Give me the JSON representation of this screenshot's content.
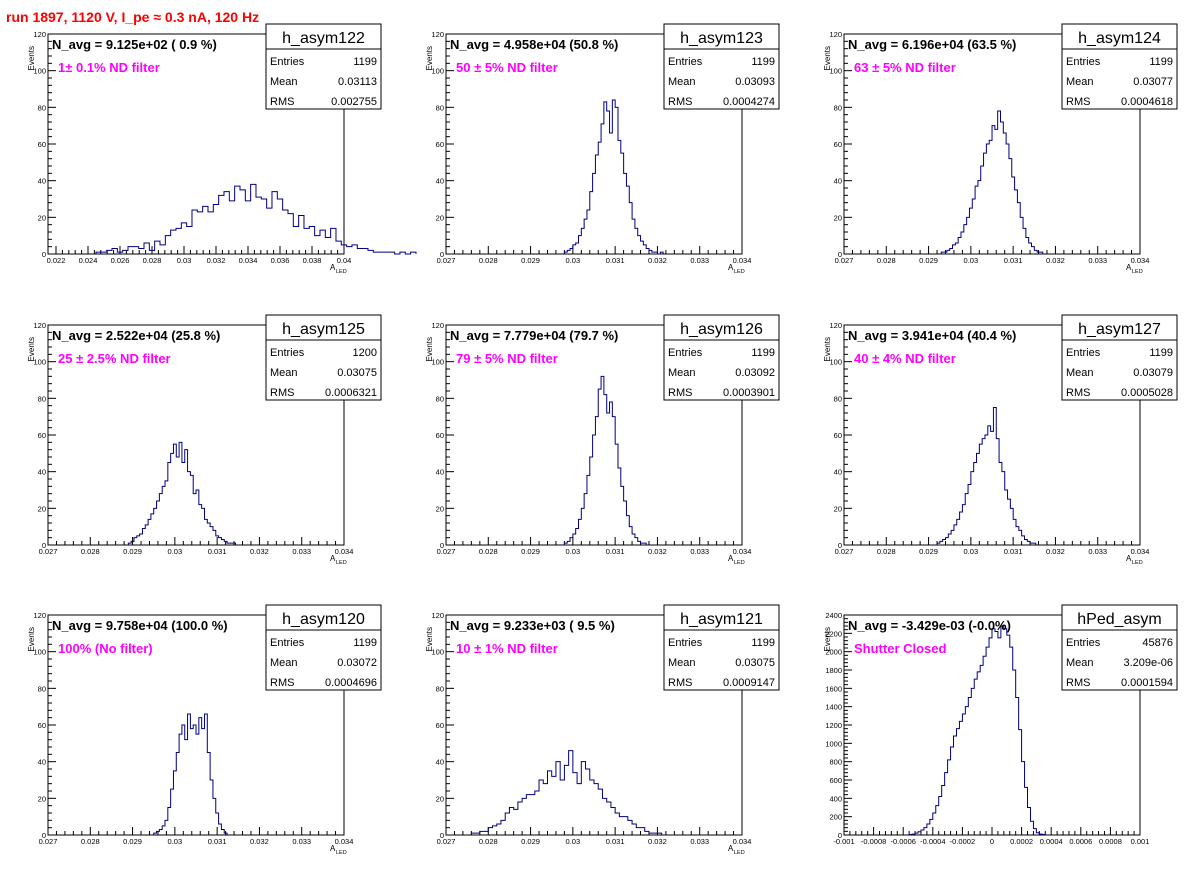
{
  "title": "run 1897,  1120 V, I_pe ≈ 0.3 nA, 120 Hz",
  "colors": {
    "title": "#ff0000",
    "note": "#ff00ff",
    "line": "#000080"
  },
  "chart_data": [
    {
      "type": "bar",
      "name": "h_asym122",
      "navg": "N_avg = 9.125e+02 ( 0.9 %)",
      "note": "1± 0.1% ND filter",
      "stats": {
        "entries": "1199",
        "mean": "0.03113",
        "rms": "0.002755"
      },
      "xlim": [
        0.0215,
        0.04
      ],
      "ylim": [
        0,
        120
      ],
      "xticks": [
        0.022,
        0.024,
        0.026,
        0.028,
        0.03,
        0.032,
        0.034,
        0.036,
        0.038,
        0.04
      ],
      "xtick_labels": [
        "0.022",
        "0.024",
        "0.026",
        "0.028",
        "0.03",
        "0.032",
        "0.034",
        "0.036",
        "0.038",
        "0.04"
      ],
      "yticks": [
        0,
        20,
        40,
        60,
        80,
        100,
        120
      ],
      "ytick_labels": [
        "0",
        "20",
        "40",
        "60",
        "80",
        "100",
        "120"
      ],
      "ylabel": "Events",
      "xlabel": "A",
      "xlabel_sub": "LED",
      "bins": {
        "start": 0.0245,
        "width": 0.0003333,
        "values": [
          1,
          1,
          2,
          3,
          1,
          2,
          4,
          4,
          3,
          6,
          2,
          7,
          5,
          10,
          13,
          14,
          17,
          15,
          24,
          23,
          26,
          23,
          27,
          32,
          34,
          29,
          37,
          35,
          29,
          38,
          31,
          30,
          25,
          34,
          30,
          24,
          22,
          15,
          21,
          14,
          15,
          10,
          13,
          9,
          14,
          7,
          5,
          4,
          5,
          3,
          3,
          2,
          1,
          1,
          1,
          1,
          0,
          1,
          0,
          1
        ]
      }
    },
    {
      "type": "bar",
      "name": "h_asym123",
      "navg": "N_avg = 4.958e+04 (50.8 %)",
      "note": "50 ± 5% ND filter",
      "stats": {
        "entries": "1199",
        "mean": "0.03093",
        "rms": "0.0004274"
      },
      "xlim": [
        0.027,
        0.034
      ],
      "ylim": [
        0,
        120
      ],
      "xticks": [
        0.027,
        0.028,
        0.029,
        0.03,
        0.031,
        0.032,
        0.033,
        0.034
      ],
      "xtick_labels": [
        "0.027",
        "0.028",
        "0.029",
        "0.03",
        "0.031",
        "0.032",
        "0.033",
        "0.034"
      ],
      "yticks": [
        0,
        20,
        40,
        60,
        80,
        100,
        120
      ],
      "ytick_labels": [
        "0",
        "20",
        "40",
        "60",
        "80",
        "100",
        "120"
      ],
      "ylabel": "Events",
      "xlabel": "A",
      "xlabel_sub": "LED",
      "bins": {
        "start": 0.0298,
        "width": 6.67e-05,
        "values": [
          1,
          2,
          3,
          5,
          6,
          10,
          14,
          19,
          24,
          34,
          44,
          54,
          61,
          71,
          83,
          78,
          66,
          84,
          80,
          62,
          55,
          44,
          37,
          28,
          19,
          14,
          10,
          7,
          5,
          3,
          2,
          1,
          1,
          0,
          1
        ]
      }
    },
    {
      "type": "bar",
      "name": "h_asym124",
      "navg": "N_avg = 6.196e+04 (63.5 %)",
      "note": "63 ± 5% ND filter",
      "stats": {
        "entries": "1199",
        "mean": "0.03077",
        "rms": "0.0004618"
      },
      "xlim": [
        0.027,
        0.034
      ],
      "ylim": [
        0,
        120
      ],
      "xticks": [
        0.027,
        0.028,
        0.029,
        0.03,
        0.031,
        0.032,
        0.033,
        0.034
      ],
      "xtick_labels": [
        "0.027",
        "0.028",
        "0.029",
        "0.03",
        "0.031",
        "0.032",
        "0.033",
        "0.034"
      ],
      "yticks": [
        0,
        20,
        40,
        60,
        80,
        100,
        120
      ],
      "ytick_labels": [
        "0",
        "20",
        "40",
        "60",
        "80",
        "100",
        "120"
      ],
      "ylabel": "Events",
      "xlabel": "A",
      "xlabel_sub": "LED",
      "bins": {
        "start": 0.0293,
        "width": 6.67e-05,
        "values": [
          1,
          1,
          2,
          3,
          5,
          6,
          9,
          12,
          16,
          20,
          25,
          30,
          37,
          40,
          48,
          55,
          60,
          62,
          70,
          68,
          78,
          72,
          66,
          60,
          52,
          42,
          35,
          28,
          20,
          14,
          9,
          6,
          4,
          2,
          1,
          1
        ]
      }
    },
    {
      "type": "bar",
      "name": "h_asym125",
      "navg": "N_avg = 2.522e+04 (25.8 %)",
      "note": "25 ± 2.5% ND filter",
      "stats": {
        "entries": "1200",
        "mean": "0.03075",
        "rms": "0.0006321"
      },
      "xlim": [
        0.027,
        0.034
      ],
      "ylim": [
        0,
        120
      ],
      "xticks": [
        0.027,
        0.028,
        0.029,
        0.03,
        0.031,
        0.032,
        0.033,
        0.034
      ],
      "xtick_labels": [
        "0.027",
        "0.028",
        "0.029",
        "0.03",
        "0.031",
        "0.032",
        "0.033",
        "0.034"
      ],
      "yticks": [
        0,
        20,
        40,
        60,
        80,
        100,
        120
      ],
      "ytick_labels": [
        "0",
        "20",
        "40",
        "60",
        "80",
        "100",
        "120"
      ],
      "ylabel": "Events",
      "xlabel": "A",
      "xlabel_sub": "LED",
      "bins": {
        "start": 0.0289,
        "width": 6.67e-05,
        "values": [
          1,
          2,
          4,
          5,
          6,
          9,
          11,
          14,
          17,
          20,
          24,
          28,
          32,
          35,
          45,
          50,
          55,
          48,
          56,
          45,
          52,
          40,
          38,
          28,
          30,
          22,
          20,
          14,
          12,
          10,
          8,
          5,
          4,
          3,
          2,
          1,
          1,
          1
        ]
      }
    },
    {
      "type": "bar",
      "name": "h_asym126",
      "navg": "N_avg = 7.779e+04 (79.7 %)",
      "note": "79 ± 5% ND filter",
      "stats": {
        "entries": "1199",
        "mean": "0.03092",
        "rms": "0.0003901"
      },
      "xlim": [
        0.027,
        0.034
      ],
      "ylim": [
        0,
        120
      ],
      "xticks": [
        0.027,
        0.028,
        0.029,
        0.03,
        0.031,
        0.032,
        0.033,
        0.034
      ],
      "xtick_labels": [
        "0.027",
        "0.028",
        "0.029",
        "0.03",
        "0.031",
        "0.032",
        "0.033",
        "0.034"
      ],
      "yticks": [
        0,
        20,
        40,
        60,
        80,
        100,
        120
      ],
      "ytick_labels": [
        "0",
        "20",
        "40",
        "60",
        "80",
        "100",
        "120"
      ],
      "ylabel": "Events",
      "xlabel": "A",
      "xlabel_sub": "LED",
      "bins": {
        "start": 0.0298,
        "width": 6.67e-05,
        "values": [
          1,
          2,
          4,
          6,
          9,
          14,
          20,
          28,
          38,
          48,
          60,
          70,
          85,
          92,
          82,
          72,
          78,
          70,
          55,
          42,
          32,
          24,
          16,
          10,
          6,
          4,
          2,
          1,
          1
        ]
      }
    },
    {
      "type": "bar",
      "name": "h_asym127",
      "navg": "N_avg = 3.941e+04 (40.4 %)",
      "note": "40 ± 4% ND filter",
      "stats": {
        "entries": "1199",
        "mean": "0.03079",
        "rms": "0.0005028"
      },
      "xlim": [
        0.027,
        0.034
      ],
      "ylim": [
        0,
        120
      ],
      "xticks": [
        0.027,
        0.028,
        0.029,
        0.03,
        0.031,
        0.032,
        0.033,
        0.034
      ],
      "xtick_labels": [
        "0.027",
        "0.028",
        "0.029",
        "0.03",
        "0.031",
        "0.032",
        "0.033",
        "0.034"
      ],
      "yticks": [
        0,
        20,
        40,
        60,
        80,
        100,
        120
      ],
      "ytick_labels": [
        "0",
        "20",
        "40",
        "60",
        "80",
        "100",
        "120"
      ],
      "ylabel": "Events",
      "xlabel": "A",
      "xlabel_sub": "LED",
      "bins": {
        "start": 0.0292,
        "width": 6.67e-05,
        "values": [
          1,
          2,
          3,
          4,
          6,
          8,
          11,
          14,
          18,
          22,
          28,
          33,
          40,
          45,
          50,
          55,
          58,
          60,
          65,
          62,
          75,
          58,
          45,
          40,
          30,
          25,
          20,
          14,
          10,
          8,
          5,
          3,
          2,
          1,
          1
        ]
      }
    },
    {
      "type": "bar",
      "name": "h_asym120",
      "navg": "N_avg = 9.758e+04 (100.0 %)",
      "note": "100% (No filter)",
      "stats": {
        "entries": "1199",
        "mean": "0.03072",
        "rms": "0.0004696"
      },
      "xlim": [
        0.027,
        0.034
      ],
      "ylim": [
        0,
        120
      ],
      "xticks": [
        0.027,
        0.028,
        0.029,
        0.03,
        0.031,
        0.032,
        0.033,
        0.034
      ],
      "xtick_labels": [
        "0.027",
        "0.028",
        "0.029",
        "0.03",
        "0.031",
        "0.032",
        "0.033",
        "0.034"
      ],
      "yticks": [
        0,
        20,
        40,
        60,
        80,
        100,
        120
      ],
      "ytick_labels": [
        "0",
        "20",
        "40",
        "60",
        "80",
        "100",
        "120"
      ],
      "ylabel": "Events",
      "xlabel": "A",
      "xlabel_sub": "LED",
      "bins": {
        "start": 0.0295,
        "width": 6.67e-05,
        "values": [
          1,
          2,
          3,
          5,
          8,
          15,
          25,
          35,
          45,
          55,
          60,
          52,
          66,
          58,
          60,
          55,
          64,
          58,
          66,
          45,
          30,
          20,
          12,
          6,
          3,
          1
        ]
      }
    },
    {
      "type": "bar",
      "name": "h_asym121",
      "navg": "N_avg = 9.233e+03 ( 9.5 %)",
      "note": "10 ± 1% ND filter",
      "stats": {
        "entries": "1199",
        "mean": "0.03075",
        "rms": "0.0009147"
      },
      "xlim": [
        0.027,
        0.034
      ],
      "ylim": [
        0,
        120
      ],
      "xticks": [
        0.027,
        0.028,
        0.029,
        0.03,
        0.031,
        0.032,
        0.033,
        0.034
      ],
      "xtick_labels": [
        "0.027",
        "0.028",
        "0.029",
        "0.03",
        "0.031",
        "0.032",
        "0.033",
        "0.034"
      ],
      "yticks": [
        0,
        20,
        40,
        60,
        80,
        100,
        120
      ],
      "ytick_labels": [
        "0",
        "20",
        "40",
        "60",
        "80",
        "100",
        "120"
      ],
      "ylabel": "Events",
      "xlabel": "A",
      "xlabel_sub": "LED",
      "bins": {
        "start": 0.0276,
        "width": 0.0001,
        "values": [
          1,
          1,
          2,
          2,
          4,
          5,
          6,
          8,
          12,
          15,
          14,
          18,
          20,
          22,
          22,
          24,
          30,
          28,
          35,
          32,
          40,
          30,
          38,
          46,
          34,
          28,
          40,
          36,
          30,
          28,
          25,
          20,
          18,
          15,
          12,
          10,
          10,
          8,
          6,
          4,
          4,
          2,
          1,
          1,
          1
        ]
      }
    },
    {
      "type": "bar",
      "name": "hPed_asym",
      "navg": "N_avg = -3.429e-03 (-0.0%)",
      "note": "Shutter Closed",
      "stats": {
        "entries": "45876",
        "mean": "3.209e-06",
        "rms": "0.0001594"
      },
      "xlim": [
        -0.001,
        0.001
      ],
      "ylim": [
        0,
        2400
      ],
      "xticks": [
        -0.001,
        -0.0008,
        -0.0006,
        -0.0004,
        -0.0002,
        0,
        0.0002,
        0.0004,
        0.0006,
        0.0008,
        0.001
      ],
      "xtick_labels": [
        "-0.001",
        "-0.0008",
        "-0.0006",
        "-0.0004",
        "-0.0002",
        "0",
        "0.0002",
        "0.0004",
        "0.0006",
        "0.0008",
        "0.001"
      ],
      "yticks": [
        0,
        200,
        400,
        600,
        800,
        1000,
        1200,
        1400,
        1600,
        1800,
        2000,
        2200,
        2400
      ],
      "ytick_labels": [
        "0",
        "200",
        "400",
        "600",
        "800",
        "1000",
        "1200",
        "1400",
        "1600",
        "1800",
        "2000",
        "2200",
        "2400"
      ],
      "ylabel": "Events",
      "xlabel": "",
      "xlabel_sub": "",
      "bins": {
        "start": -0.00056,
        "width": 2e-05,
        "values": [
          5,
          10,
          20,
          35,
          55,
          80,
          120,
          170,
          240,
          320,
          420,
          540,
          680,
          820,
          960,
          1080,
          1160,
          1240,
          1320,
          1400,
          1500,
          1600,
          1700,
          1780,
          1850,
          1950,
          2050,
          2150,
          2250,
          2220,
          2150,
          2280,
          2250,
          2180,
          2050,
          1800,
          1500,
          1150,
          800,
          520,
          300,
          150,
          70,
          25,
          10,
          5
        ]
      }
    }
  ]
}
